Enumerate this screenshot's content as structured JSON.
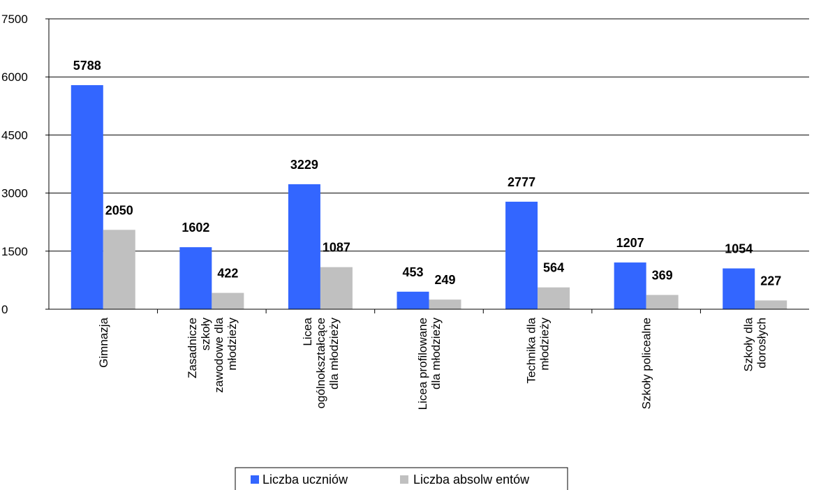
{
  "chart_data": {
    "type": "bar",
    "categories": [
      [
        "Gimnazja"
      ],
      [
        "Zasadnicze",
        "szkoły",
        "zawodowe dla",
        "młodzieży"
      ],
      [
        "Licea",
        "ogólnokształcące",
        "dla młodzieży"
      ],
      [
        "Licea profilowane",
        "dla młodzieży"
      ],
      [
        "Technika dla",
        "młodzieży"
      ],
      [
        "Szkoły policealne"
      ],
      [
        "Szkoły dla",
        "dorosłych"
      ]
    ],
    "series": [
      {
        "name": "Liczba uczniów",
        "color": "#3366ff",
        "values": [
          5788,
          1602,
          3229,
          453,
          2777,
          1207,
          1054
        ]
      },
      {
        "name": "Liczba absolwentów",
        "color": "#c0c0c0",
        "values": [
          2050,
          422,
          1087,
          249,
          564,
          369,
          227
        ]
      }
    ],
    "ylim": [
      0,
      7500
    ],
    "yticks": [
      "0",
      "1500",
      "3000",
      "4500",
      "6000",
      "7500"
    ],
    "grid": true,
    "legend": "bottom",
    "data_labels": true
  },
  "legend": {
    "items": [
      {
        "label": "Liczba uczniów",
        "color": "#3366ff"
      },
      {
        "label": "Liczba absolw entów",
        "color": "#c0c0c0"
      }
    ]
  }
}
